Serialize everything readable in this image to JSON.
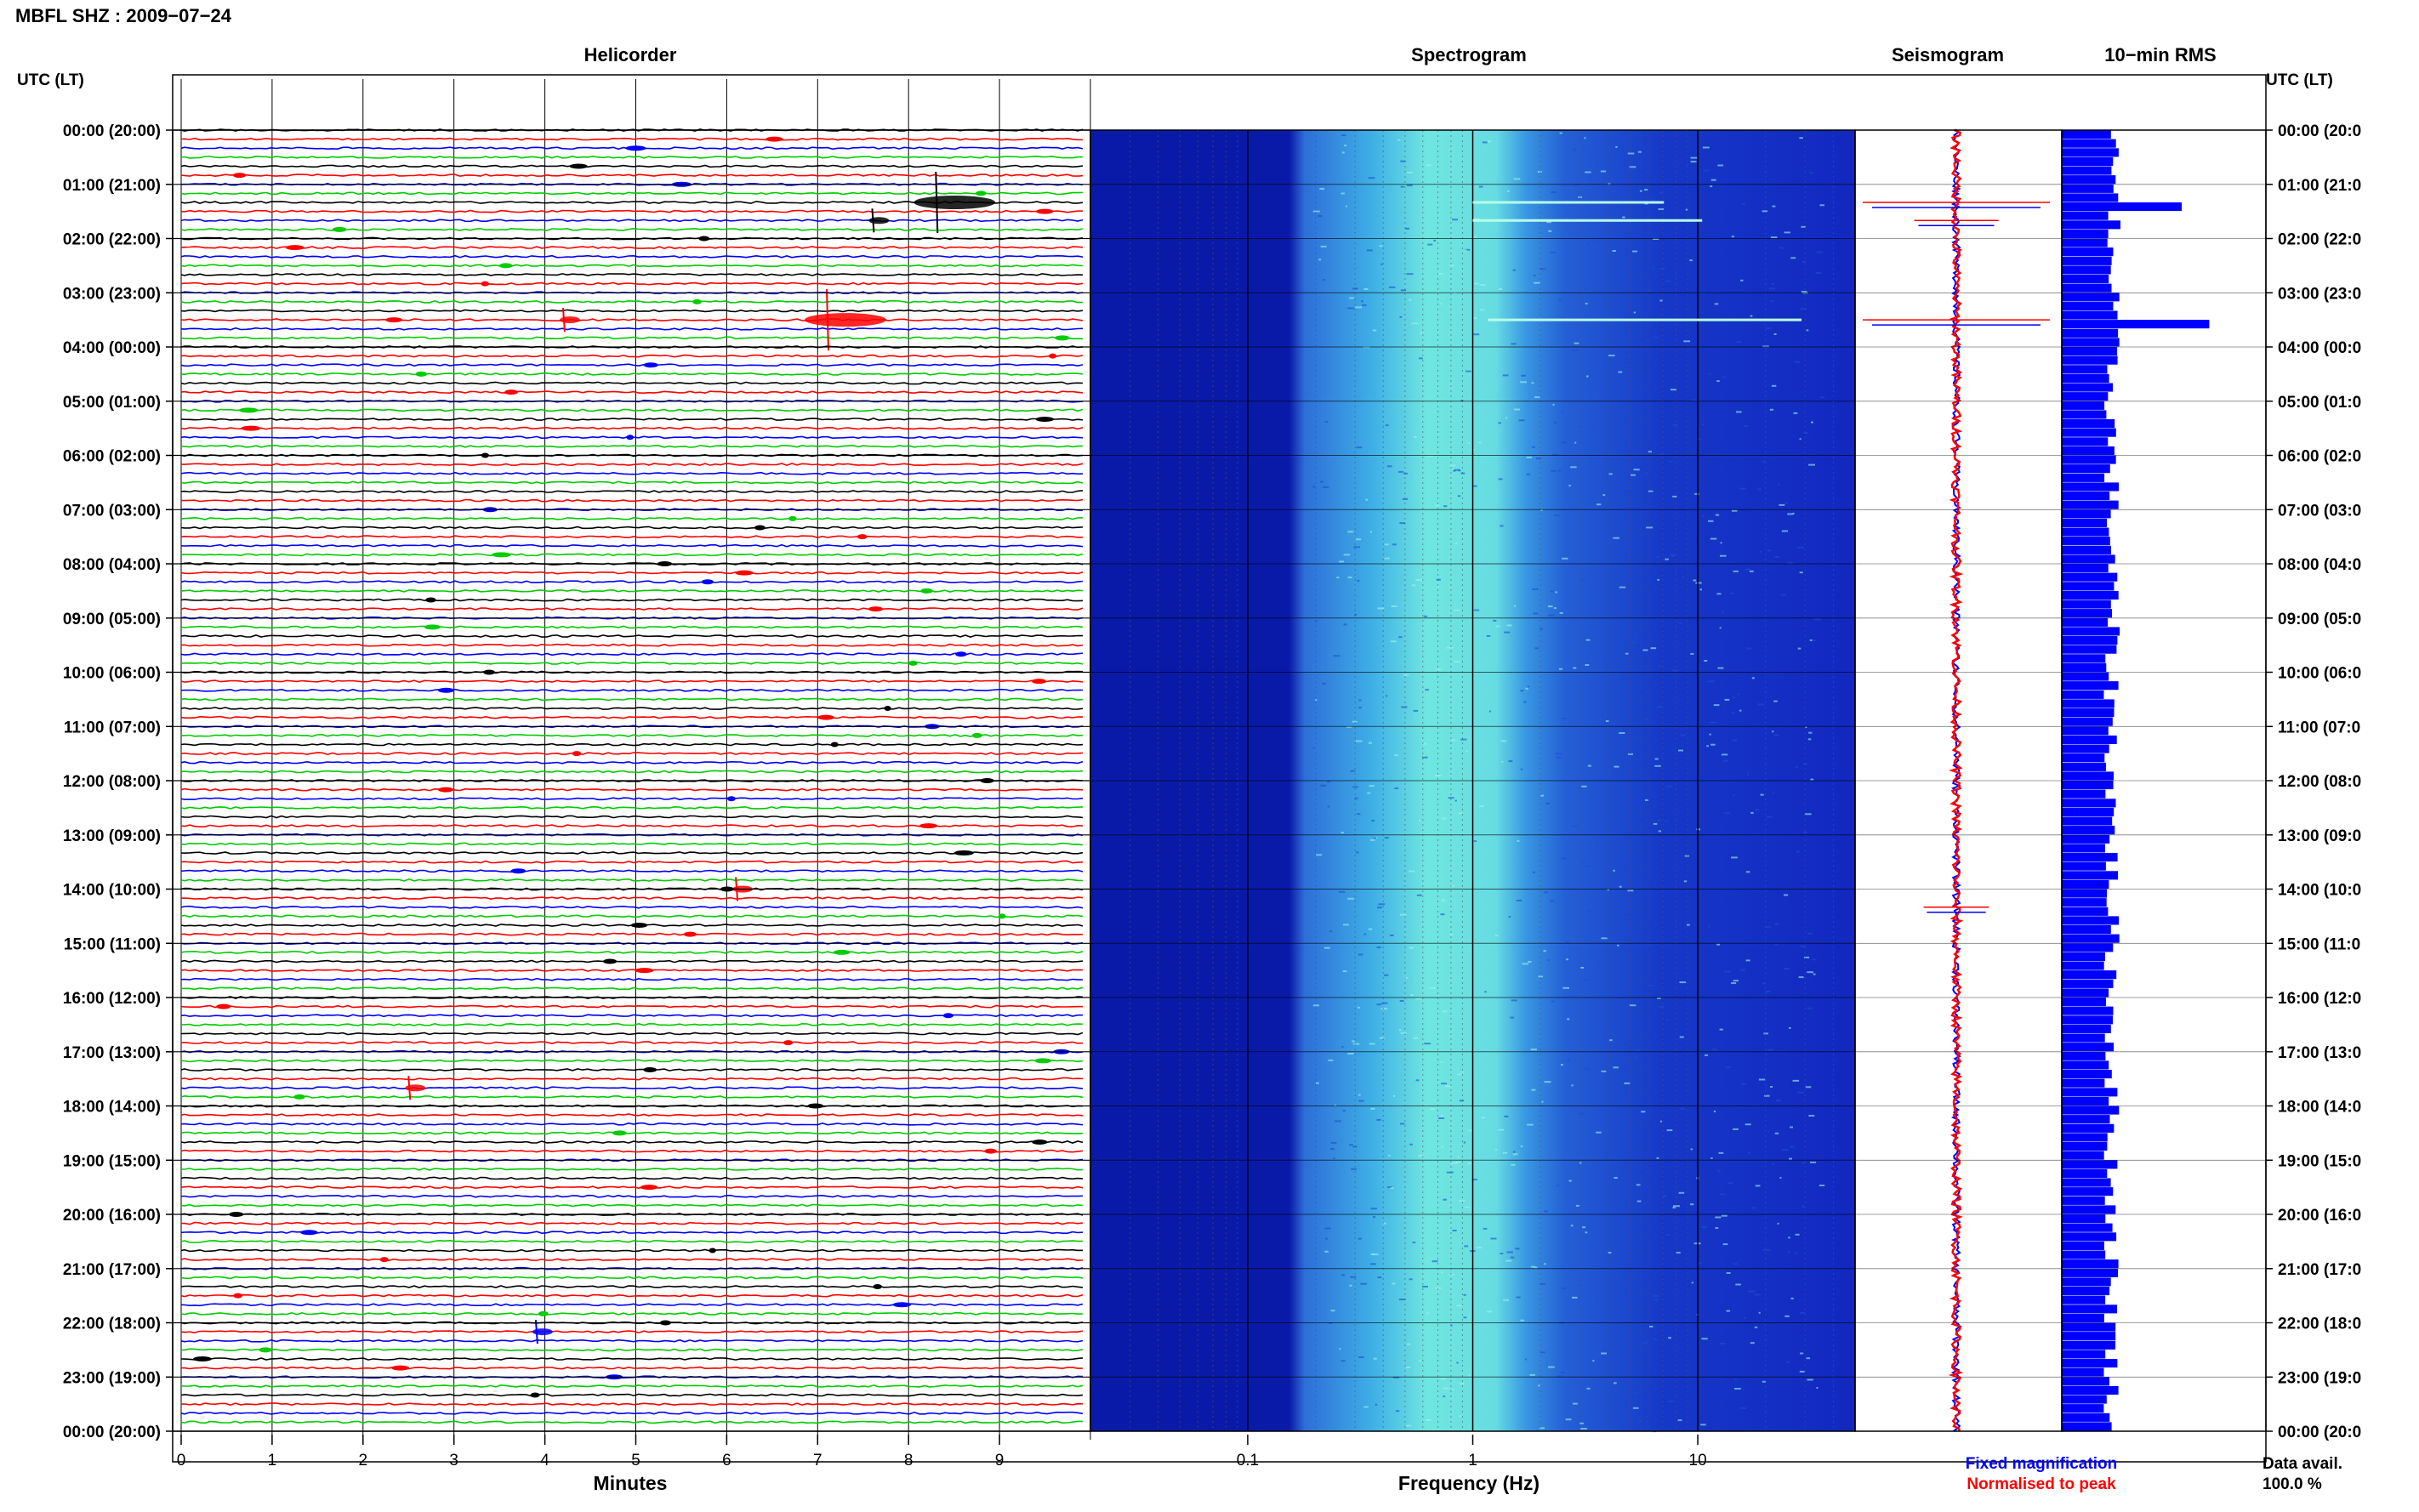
{
  "header": {
    "title": "MBFL SHZ : 2009−07−24"
  },
  "panels": {
    "helicorder": "Helicorder",
    "spectrogram": "Spectrogram",
    "seismogram": "Seismogram",
    "rms": "10−min RMS"
  },
  "time_axis": {
    "left_header": "UTC (LT)",
    "right_header": "UTC (LT)",
    "labels": [
      "00:00 (20:00)",
      "01:00 (21:00)",
      "02:00 (22:00)",
      "03:00 (23:00)",
      "04:00 (00:00)",
      "05:00 (01:00)",
      "06:00 (02:00)",
      "07:00 (03:00)",
      "08:00 (04:00)",
      "09:00 (05:00)",
      "10:00 (06:00)",
      "11:00 (07:00)",
      "12:00 (08:00)",
      "13:00 (09:00)",
      "14:00 (10:00)",
      "15:00 (11:00)",
      "16:00 (12:00)",
      "17:00 (13:00)",
      "18:00 (14:00)",
      "19:00 (15:00)",
      "20:00 (16:00)",
      "21:00 (17:00)",
      "22:00 (18:00)",
      "23:00 (19:00)",
      "00:00 (20:00)"
    ],
    "right_labels": [
      "00:00 (20:0",
      "01:00 (21:0",
      "02:00 (22:0",
      "03:00 (23:0",
      "04:00 (00:0",
      "05:00 (01:0",
      "06:00 (02:0",
      "07:00 (03:0",
      "08:00 (04:0",
      "09:00 (05:0",
      "10:00 (06:0",
      "11:00 (07:0",
      "12:00 (08:0",
      "13:00 (09:0",
      "14:00 (10:0",
      "15:00 (11:0",
      "16:00 (12:0",
      "17:00 (13:0",
      "18:00 (14:0",
      "19:00 (15:0",
      "20:00 (16:0",
      "21:00 (17:0",
      "22:00 (18:0",
      "23:00 (19:0",
      "00:00 (20:0"
    ]
  },
  "helicorder_axis": {
    "ticks": [
      "0",
      "1",
      "2",
      "3",
      "4",
      "5",
      "6",
      "7",
      "8",
      "9"
    ],
    "xlabel": "Minutes"
  },
  "spectrogram_axis": {
    "ticks": [
      "0.1",
      "1",
      "10"
    ],
    "xlabel": "Frequency (Hz)"
  },
  "legend": {
    "fixed": "Fixed magnification",
    "normalised": "Normalised to peak",
    "fixed_color": "#0000ff",
    "normalised_color": "#ff0000"
  },
  "availability": {
    "label": "Data avail.",
    "value": "100.0 %"
  },
  "colors": {
    "trace_cycle": [
      "#000000",
      "#ff0000",
      "#0000ff",
      "#00cc00"
    ],
    "spectrogram_low": "#0a1aa8",
    "spectrogram_high": "#6fe6e0",
    "rms_bar": "#0000ff"
  },
  "chart_data": {
    "type": "heatmap",
    "helicorder": {
      "rows_per_hour": 6,
      "row_minutes": 10,
      "events": [
        {
          "time": "01:20",
          "minute": 8.3,
          "color": "black"
        },
        {
          "time": "01:40",
          "minute": 7.6,
          "color": "black"
        },
        {
          "time": "03:30",
          "minute": 7.1,
          "color": "red"
        },
        {
          "time": "03:30",
          "minute": 4.2,
          "color": "red"
        },
        {
          "time": "14:00",
          "minute": 6.1,
          "color": "red"
        },
        {
          "time": "22:10",
          "minute": 3.9,
          "color": "blue"
        },
        {
          "time": "17:40",
          "minute": 2.5,
          "color": "red"
        }
      ]
    },
    "spectrogram": {
      "freq_range_hz": [
        0.02,
        50
      ],
      "scale": "log",
      "energy_band_hz": [
        0.2,
        2
      ]
    },
    "rms": {
      "interval_minutes": 10,
      "spikes": [
        {
          "time": "01:20",
          "level": 0.75
        },
        {
          "time": "01:40",
          "level": 0.35
        },
        {
          "time": "03:30",
          "level": 0.93
        }
      ],
      "baseline_level": 0.3
    },
    "seismogram": {
      "spikes": [
        {
          "time": "01:20",
          "level": 1.0
        },
        {
          "time": "01:40",
          "level": 0.45
        },
        {
          "time": "03:30",
          "level": 1.0
        },
        {
          "time": "14:20",
          "level": 0.35
        }
      ]
    }
  }
}
